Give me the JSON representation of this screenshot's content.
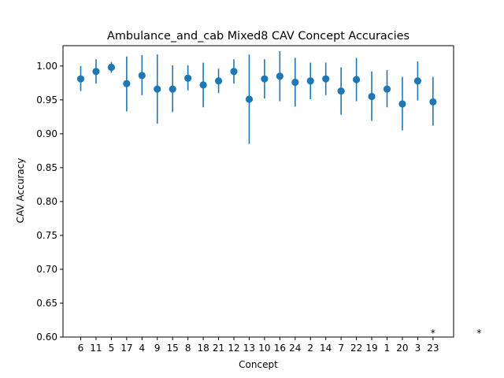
{
  "chart_data": {
    "type": "scatter",
    "title": "Ambulance_and_cab Mixed8 CAV Concept Accuracies",
    "xlabel": "Concept",
    "ylabel": "CAV Accuracy",
    "ylim": [
      0.6,
      1.03
    ],
    "yticks": [
      "0.60",
      "0.65",
      "0.70",
      "0.75",
      "0.80",
      "0.85",
      "0.90",
      "0.95",
      "1.00"
    ],
    "grid": false,
    "marker_color": "#1f77b4",
    "categories": [
      "6",
      "11",
      "5",
      "17",
      "4",
      "9",
      "15",
      "8",
      "18",
      "21",
      "12",
      "13",
      "10",
      "16",
      "24",
      "2",
      "14",
      "7",
      "22",
      "19",
      "1",
      "20",
      "3",
      "23"
    ],
    "series": [
      {
        "mean": [
          0.981,
          0.992,
          0.998,
          0.974,
          0.986,
          0.966,
          0.966,
          0.982,
          0.972,
          0.978,
          0.992,
          0.951,
          0.981,
          0.985,
          0.976,
          0.978,
          0.981,
          0.963,
          0.98,
          0.955,
          0.966,
          0.944,
          0.978,
          0.947
        ],
        "lower": [
          0.963,
          0.974,
          0.99,
          0.933,
          0.957,
          0.915,
          0.932,
          0.964,
          0.939,
          0.96,
          0.974,
          0.885,
          0.952,
          0.948,
          0.94,
          0.951,
          0.957,
          0.928,
          0.948,
          0.919,
          0.939,
          0.905,
          0.949,
          0.912
        ],
        "upper": [
          1.0,
          1.01,
          1.006,
          1.014,
          1.016,
          1.017,
          1.001,
          1.001,
          1.005,
          0.996,
          1.01,
          1.017,
          1.01,
          1.022,
          1.012,
          1.005,
          1.005,
          0.998,
          1.012,
          0.992,
          0.994,
          0.984,
          1.007,
          0.984
        ]
      }
    ],
    "annotations": [
      {
        "text": "*",
        "x_category_index": 23,
        "y": 0.6
      },
      {
        "text": "*",
        "x_category_index": 26,
        "y": 0.6
      }
    ]
  }
}
